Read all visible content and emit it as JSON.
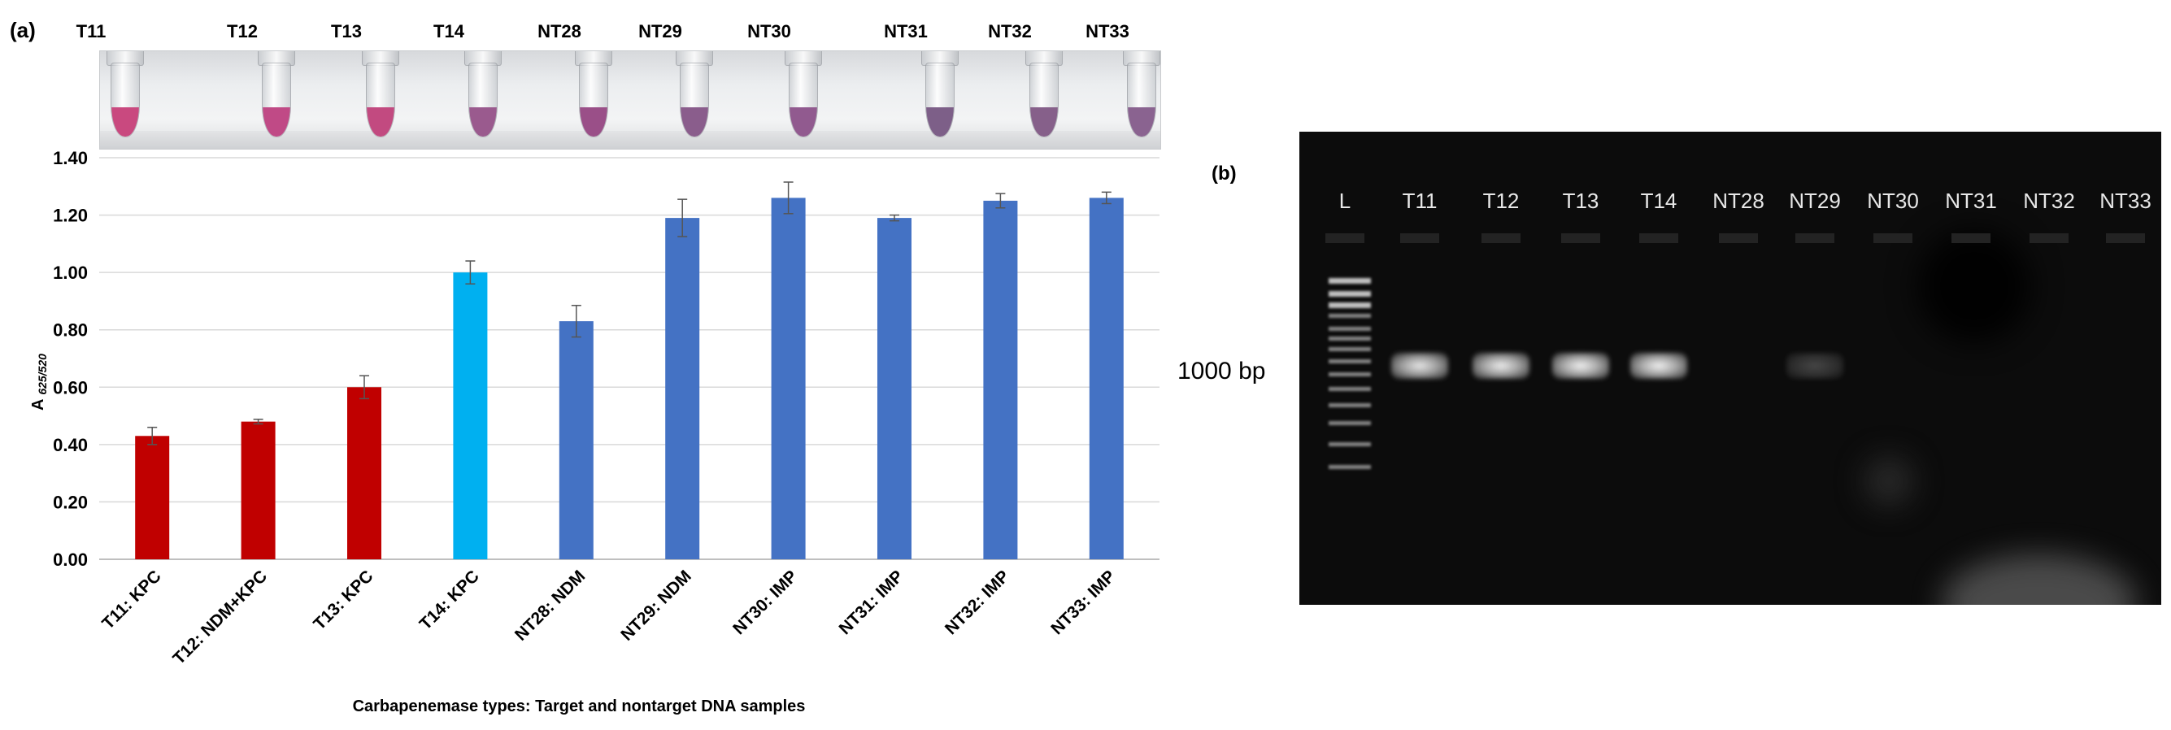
{
  "panel_a": {
    "label": "(a)",
    "tube_labels": [
      "T11",
      "T12",
      "T13",
      "T14",
      "NT28",
      "NT29",
      "NT30",
      "NT31",
      "NT32",
      "NT33"
    ],
    "tube_colors": [
      "#c9497f",
      "#c04a86",
      "#c24a80",
      "#9a5a8e",
      "#9a4f88",
      "#8a5d8c",
      "#915a8f",
      "#7d5f88",
      "#86608a",
      "#8a6390"
    ]
  },
  "panel_b": {
    "label": "(b)",
    "lane_labels": [
      "L",
      "T11",
      "T12",
      "T13",
      "T14",
      "NT28",
      "NT29",
      "NT30",
      "NT31",
      "NT32",
      "NT33"
    ],
    "marker_label": "1000 bp"
  },
  "chart_data": {
    "type": "bar",
    "categories": [
      "T11: KPC",
      "T12: NDM+KPC",
      "T13: KPC",
      "T14: KPC",
      "NT28: NDM",
      "NT29: NDM",
      "NT30: IMP",
      "NT31: IMP",
      "NT32: IMP",
      "NT33: IMP"
    ],
    "values": [
      0.43,
      0.48,
      0.6,
      1.0,
      0.83,
      1.19,
      1.26,
      1.19,
      1.25,
      1.26
    ],
    "errors": [
      0.03,
      0.008,
      0.04,
      0.04,
      0.055,
      0.065,
      0.055,
      0.01,
      0.025,
      0.02
    ],
    "bar_colors": [
      "#c00000",
      "#c00000",
      "#c00000",
      "#00b0f0",
      "#4472c4",
      "#4472c4",
      "#4472c4",
      "#4472c4",
      "#4472c4",
      "#4472c4"
    ],
    "ylim": [
      0,
      1.4
    ],
    "yticks": [
      "0.00",
      "0.20",
      "0.40",
      "0.60",
      "0.80",
      "1.00",
      "1.20",
      "1.40"
    ],
    "ylabel": "A",
    "ylabel_sub": "625/520",
    "xlabel": "Carbapenemase types: Target and nontarget DNA samples",
    "grid": true
  }
}
